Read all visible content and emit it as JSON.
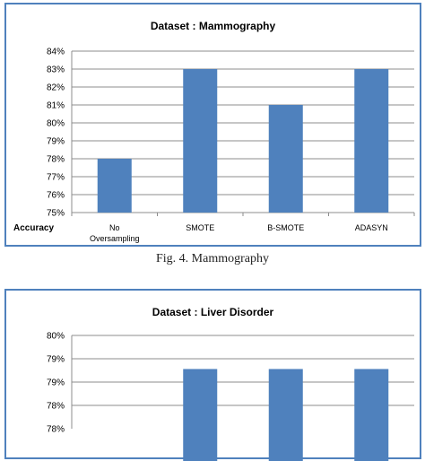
{
  "chart_data": [
    {
      "type": "bar",
      "title": "Dataset : Mammography",
      "row_label": "Accuracy",
      "categories": [
        "No Oversampling",
        "SMOTE",
        "B-SMOTE",
        "ADASYN"
      ],
      "values": [
        78,
        83,
        81,
        83
      ],
      "ylim": [
        75,
        84
      ],
      "yticks": [
        "84%",
        "83%",
        "82%",
        "81%",
        "80%",
        "79%",
        "78%",
        "77%",
        "76%",
        "75%"
      ],
      "grid": true,
      "bar_color": "#4f81bd"
    },
    {
      "type": "bar",
      "title": "Dataset : Liver Disorder",
      "categories": [
        "",
        "",
        "",
        ""
      ],
      "values": [
        null,
        79.1,
        79.1,
        79.1
      ],
      "ylim": [
        77.5,
        80
      ],
      "yticks": [
        "80%",
        "79%",
        "79%",
        "78%",
        "78%"
      ],
      "grid": true,
      "bar_color": "#4f81bd"
    }
  ],
  "caption": "Fig. 4. Mammography"
}
